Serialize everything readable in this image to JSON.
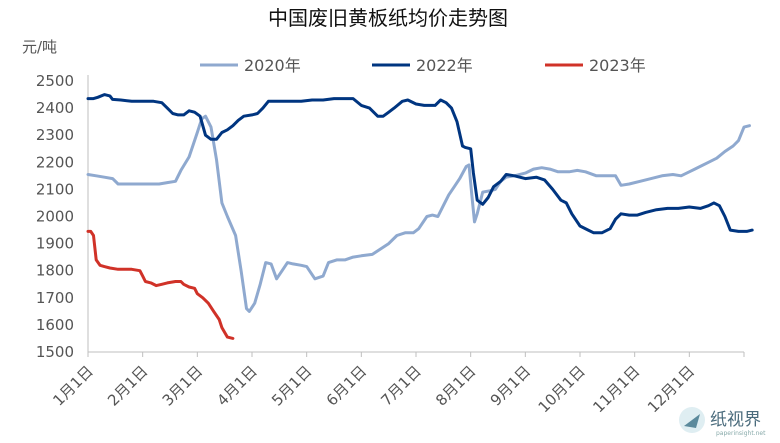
{
  "chart_data": {
    "type": "line",
    "title": "中国废旧黄板纸均价走势图",
    "ylabel": "元/吨",
    "ylim": [
      1500,
      2500
    ],
    "yticks": [
      1500,
      1600,
      1700,
      1800,
      1900,
      2000,
      2100,
      2200,
      2300,
      2400,
      2500
    ],
    "x_domain": [
      0,
      12
    ],
    "x_ticks": [
      {
        "label": "1月1日",
        "m": 0
      },
      {
        "label": "2月1日",
        "m": 1
      },
      {
        "label": "3月1日",
        "m": 2
      },
      {
        "label": "4月1日",
        "m": 3
      },
      {
        "label": "5月1日",
        "m": 4
      },
      {
        "label": "6月1日",
        "m": 5
      },
      {
        "label": "7月1日",
        "m": 6
      },
      {
        "label": "8月1日",
        "m": 7
      },
      {
        "label": "9月1日",
        "m": 8
      },
      {
        "label": "10月1日",
        "m": 9
      },
      {
        "label": "11月1日",
        "m": 10
      },
      {
        "label": "12月1日",
        "m": 11
      }
    ],
    "legend_position": "top",
    "grid": false,
    "series": [
      {
        "name": "2020年",
        "color": "#8fa9cf",
        "points": [
          [
            0,
            2155
          ],
          [
            0.15,
            2150
          ],
          [
            0.3,
            2145
          ],
          [
            0.45,
            2140
          ],
          [
            0.55,
            2120
          ],
          [
            0.7,
            2120
          ],
          [
            1.0,
            2120
          ],
          [
            1.3,
            2120
          ],
          [
            1.45,
            2125
          ],
          [
            1.6,
            2130
          ],
          [
            1.7,
            2170
          ],
          [
            1.85,
            2220
          ],
          [
            2.0,
            2310
          ],
          [
            2.08,
            2360
          ],
          [
            2.15,
            2370
          ],
          [
            2.25,
            2330
          ],
          [
            2.35,
            2210
          ],
          [
            2.45,
            2050
          ],
          [
            2.55,
            2000
          ],
          [
            2.7,
            1930
          ],
          [
            2.8,
            1800
          ],
          [
            2.9,
            1660
          ],
          [
            2.95,
            1650
          ],
          [
            3.05,
            1680
          ],
          [
            3.15,
            1750
          ],
          [
            3.25,
            1830
          ],
          [
            3.35,
            1825
          ],
          [
            3.45,
            1770
          ],
          [
            3.55,
            1800
          ],
          [
            3.65,
            1830
          ],
          [
            3.75,
            1825
          ],
          [
            3.9,
            1820
          ],
          [
            4.0,
            1815
          ],
          [
            4.15,
            1770
          ],
          [
            4.3,
            1780
          ],
          [
            4.4,
            1830
          ],
          [
            4.55,
            1840
          ],
          [
            4.7,
            1840
          ],
          [
            4.85,
            1850
          ],
          [
            5.0,
            1855
          ],
          [
            5.2,
            1860
          ],
          [
            5.35,
            1880
          ],
          [
            5.5,
            1900
          ],
          [
            5.65,
            1930
          ],
          [
            5.8,
            1940
          ],
          [
            5.95,
            1940
          ],
          [
            6.05,
            1955
          ],
          [
            6.2,
            2000
          ],
          [
            6.3,
            2005
          ],
          [
            6.4,
            2000
          ],
          [
            6.5,
            2040
          ],
          [
            6.6,
            2080
          ],
          [
            6.7,
            2110
          ],
          [
            6.8,
            2140
          ],
          [
            6.92,
            2185
          ],
          [
            6.97,
            2190
          ],
          [
            7.02,
            2080
          ],
          [
            7.07,
            1980
          ],
          [
            7.12,
            2010
          ],
          [
            7.22,
            2090
          ],
          [
            7.35,
            2095
          ],
          [
            7.45,
            2100
          ],
          [
            7.55,
            2130
          ],
          [
            7.65,
            2145
          ],
          [
            7.8,
            2150
          ],
          [
            8.0,
            2160
          ],
          [
            8.15,
            2175
          ],
          [
            8.3,
            2180
          ],
          [
            8.45,
            2175
          ],
          [
            8.6,
            2165
          ],
          [
            8.8,
            2165
          ],
          [
            8.95,
            2170
          ],
          [
            9.1,
            2165
          ],
          [
            9.3,
            2150
          ],
          [
            9.5,
            2150
          ],
          [
            9.65,
            2150
          ],
          [
            9.75,
            2115
          ],
          [
            9.9,
            2120
          ],
          [
            10.1,
            2130
          ],
          [
            10.3,
            2140
          ],
          [
            10.5,
            2150
          ],
          [
            10.7,
            2155
          ],
          [
            10.85,
            2150
          ],
          [
            11.0,
            2165
          ],
          [
            11.1,
            2175
          ],
          [
            11.2,
            2185
          ],
          [
            11.35,
            2200
          ],
          [
            11.5,
            2215
          ],
          [
            11.65,
            2240
          ],
          [
            11.8,
            2260
          ],
          [
            11.9,
            2280
          ],
          [
            12.0,
            2330
          ],
          [
            12.1,
            2335
          ]
        ]
      },
      {
        "name": "2022年",
        "color": "#003580",
        "points": [
          [
            0,
            2435
          ],
          [
            0.1,
            2435
          ],
          [
            0.18,
            2440
          ],
          [
            0.3,
            2450
          ],
          [
            0.4,
            2445
          ],
          [
            0.45,
            2432
          ],
          [
            0.6,
            2430
          ],
          [
            0.8,
            2425
          ],
          [
            1.0,
            2425
          ],
          [
            1.2,
            2425
          ],
          [
            1.35,
            2420
          ],
          [
            1.45,
            2400
          ],
          [
            1.55,
            2380
          ],
          [
            1.65,
            2375
          ],
          [
            1.75,
            2375
          ],
          [
            1.85,
            2390
          ],
          [
            1.95,
            2385
          ],
          [
            2.05,
            2370
          ],
          [
            2.15,
            2300
          ],
          [
            2.25,
            2285
          ],
          [
            2.35,
            2285
          ],
          [
            2.45,
            2310
          ],
          [
            2.55,
            2320
          ],
          [
            2.65,
            2335
          ],
          [
            2.75,
            2355
          ],
          [
            2.85,
            2370
          ],
          [
            3.0,
            2375
          ],
          [
            3.1,
            2380
          ],
          [
            3.2,
            2400
          ],
          [
            3.3,
            2425
          ],
          [
            3.5,
            2425
          ],
          [
            3.7,
            2425
          ],
          [
            3.9,
            2425
          ],
          [
            4.1,
            2430
          ],
          [
            4.3,
            2430
          ],
          [
            4.5,
            2435
          ],
          [
            4.7,
            2435
          ],
          [
            4.85,
            2435
          ],
          [
            5.0,
            2410
          ],
          [
            5.15,
            2400
          ],
          [
            5.3,
            2370
          ],
          [
            5.4,
            2370
          ],
          [
            5.5,
            2385
          ],
          [
            5.6,
            2400
          ],
          [
            5.75,
            2425
          ],
          [
            5.85,
            2430
          ],
          [
            6.0,
            2415
          ],
          [
            6.15,
            2410
          ],
          [
            6.25,
            2410
          ],
          [
            6.35,
            2410
          ],
          [
            6.45,
            2430
          ],
          [
            6.55,
            2420
          ],
          [
            6.65,
            2400
          ],
          [
            6.75,
            2350
          ],
          [
            6.85,
            2260
          ],
          [
            6.9,
            2255
          ],
          [
            7.0,
            2250
          ],
          [
            7.05,
            2160
          ],
          [
            7.12,
            2060
          ],
          [
            7.22,
            2045
          ],
          [
            7.32,
            2070
          ],
          [
            7.42,
            2110
          ],
          [
            7.55,
            2130
          ],
          [
            7.65,
            2155
          ],
          [
            7.8,
            2150
          ],
          [
            8.0,
            2140
          ],
          [
            8.2,
            2145
          ],
          [
            8.35,
            2135
          ],
          [
            8.5,
            2100
          ],
          [
            8.65,
            2060
          ],
          [
            8.75,
            2050
          ],
          [
            8.85,
            2010
          ],
          [
            9.0,
            1965
          ],
          [
            9.15,
            1950
          ],
          [
            9.25,
            1940
          ],
          [
            9.4,
            1940
          ],
          [
            9.55,
            1955
          ],
          [
            9.65,
            1990
          ],
          [
            9.75,
            2010
          ],
          [
            9.9,
            2005
          ],
          [
            10.05,
            2005
          ],
          [
            10.2,
            2015
          ],
          [
            10.4,
            2025
          ],
          [
            10.6,
            2030
          ],
          [
            10.8,
            2030
          ],
          [
            11.0,
            2035
          ],
          [
            11.2,
            2030
          ],
          [
            11.35,
            2040
          ],
          [
            11.45,
            2050
          ],
          [
            11.55,
            2040
          ],
          [
            11.65,
            2000
          ],
          [
            11.75,
            1950
          ],
          [
            11.9,
            1945
          ],
          [
            12.05,
            1945
          ],
          [
            12.15,
            1950
          ]
        ]
      },
      {
        "name": "2023年",
        "color": "#d03228",
        "points": [
          [
            0,
            1945
          ],
          [
            0.05,
            1945
          ],
          [
            0.1,
            1930
          ],
          [
            0.15,
            1840
          ],
          [
            0.22,
            1820
          ],
          [
            0.3,
            1815
          ],
          [
            0.4,
            1810
          ],
          [
            0.55,
            1805
          ],
          [
            0.8,
            1805
          ],
          [
            0.95,
            1800
          ],
          [
            1.0,
            1780
          ],
          [
            1.05,
            1760
          ],
          [
            1.15,
            1755
          ],
          [
            1.25,
            1745
          ],
          [
            1.35,
            1750
          ],
          [
            1.45,
            1755
          ],
          [
            1.6,
            1760
          ],
          [
            1.7,
            1760
          ],
          [
            1.75,
            1750
          ],
          [
            1.85,
            1740
          ],
          [
            1.95,
            1735
          ],
          [
            2.0,
            1715
          ],
          [
            2.1,
            1700
          ],
          [
            2.2,
            1680
          ],
          [
            2.3,
            1650
          ],
          [
            2.4,
            1620
          ],
          [
            2.45,
            1590
          ],
          [
            2.55,
            1555
          ],
          [
            2.65,
            1550
          ]
        ]
      }
    ]
  },
  "watermark": {
    "text": "纸视界",
    "subtext": "paperinsight.net"
  }
}
